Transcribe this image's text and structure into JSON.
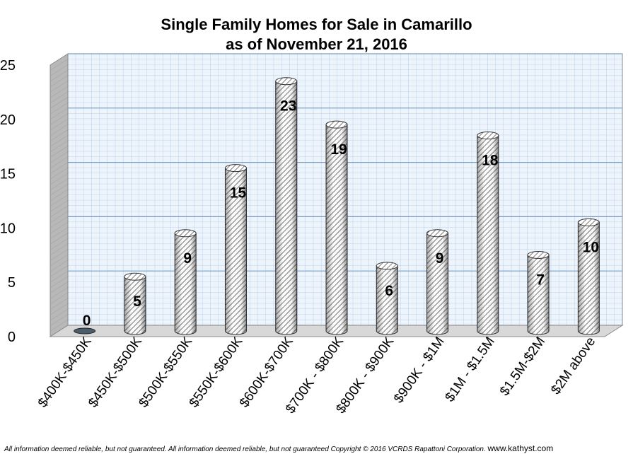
{
  "chart_data": {
    "type": "bar",
    "title": "Single Family Homes for Sale in Camarillo",
    "subtitle": "as of November 21, 2016",
    "categories": [
      "$400K-$450K",
      "$450K-$500K",
      "$500K-$550K",
      "$550K-$600K",
      "$600K-$700K",
      "$700K - $800K",
      "$800K - $900K",
      "$900K  - $1M",
      "$1M - $1.5M",
      "$1.5M-$2M",
      "$2M above"
    ],
    "values": [
      0,
      5,
      9,
      15,
      23,
      19,
      6,
      9,
      18,
      7,
      10
    ],
    "ylim": [
      0,
      25
    ],
    "yticks": [
      "0",
      "5",
      "10",
      "15",
      "20",
      "25"
    ],
    "grid": true,
    "legend": "none",
    "bar_style": "3d-cylinder, diagonal hatch",
    "colors": {
      "bar_fill": "#ffffff",
      "bar_hatch": "#555555",
      "grid_minor": "#a9c7e8",
      "grid_major": "#7a9cc0",
      "wall": "#eef4fb",
      "side_wall": "#b8b8b8",
      "floor": "#d8d8d8"
    }
  },
  "footer": {
    "disclaimer": "All information deemed reliable, but not guaranteed. All information deemed reliable, but not guaranteed Copyright © 2016 VCRDS  Rapattoni Corporation.",
    "website": "www.kathyst.com"
  }
}
